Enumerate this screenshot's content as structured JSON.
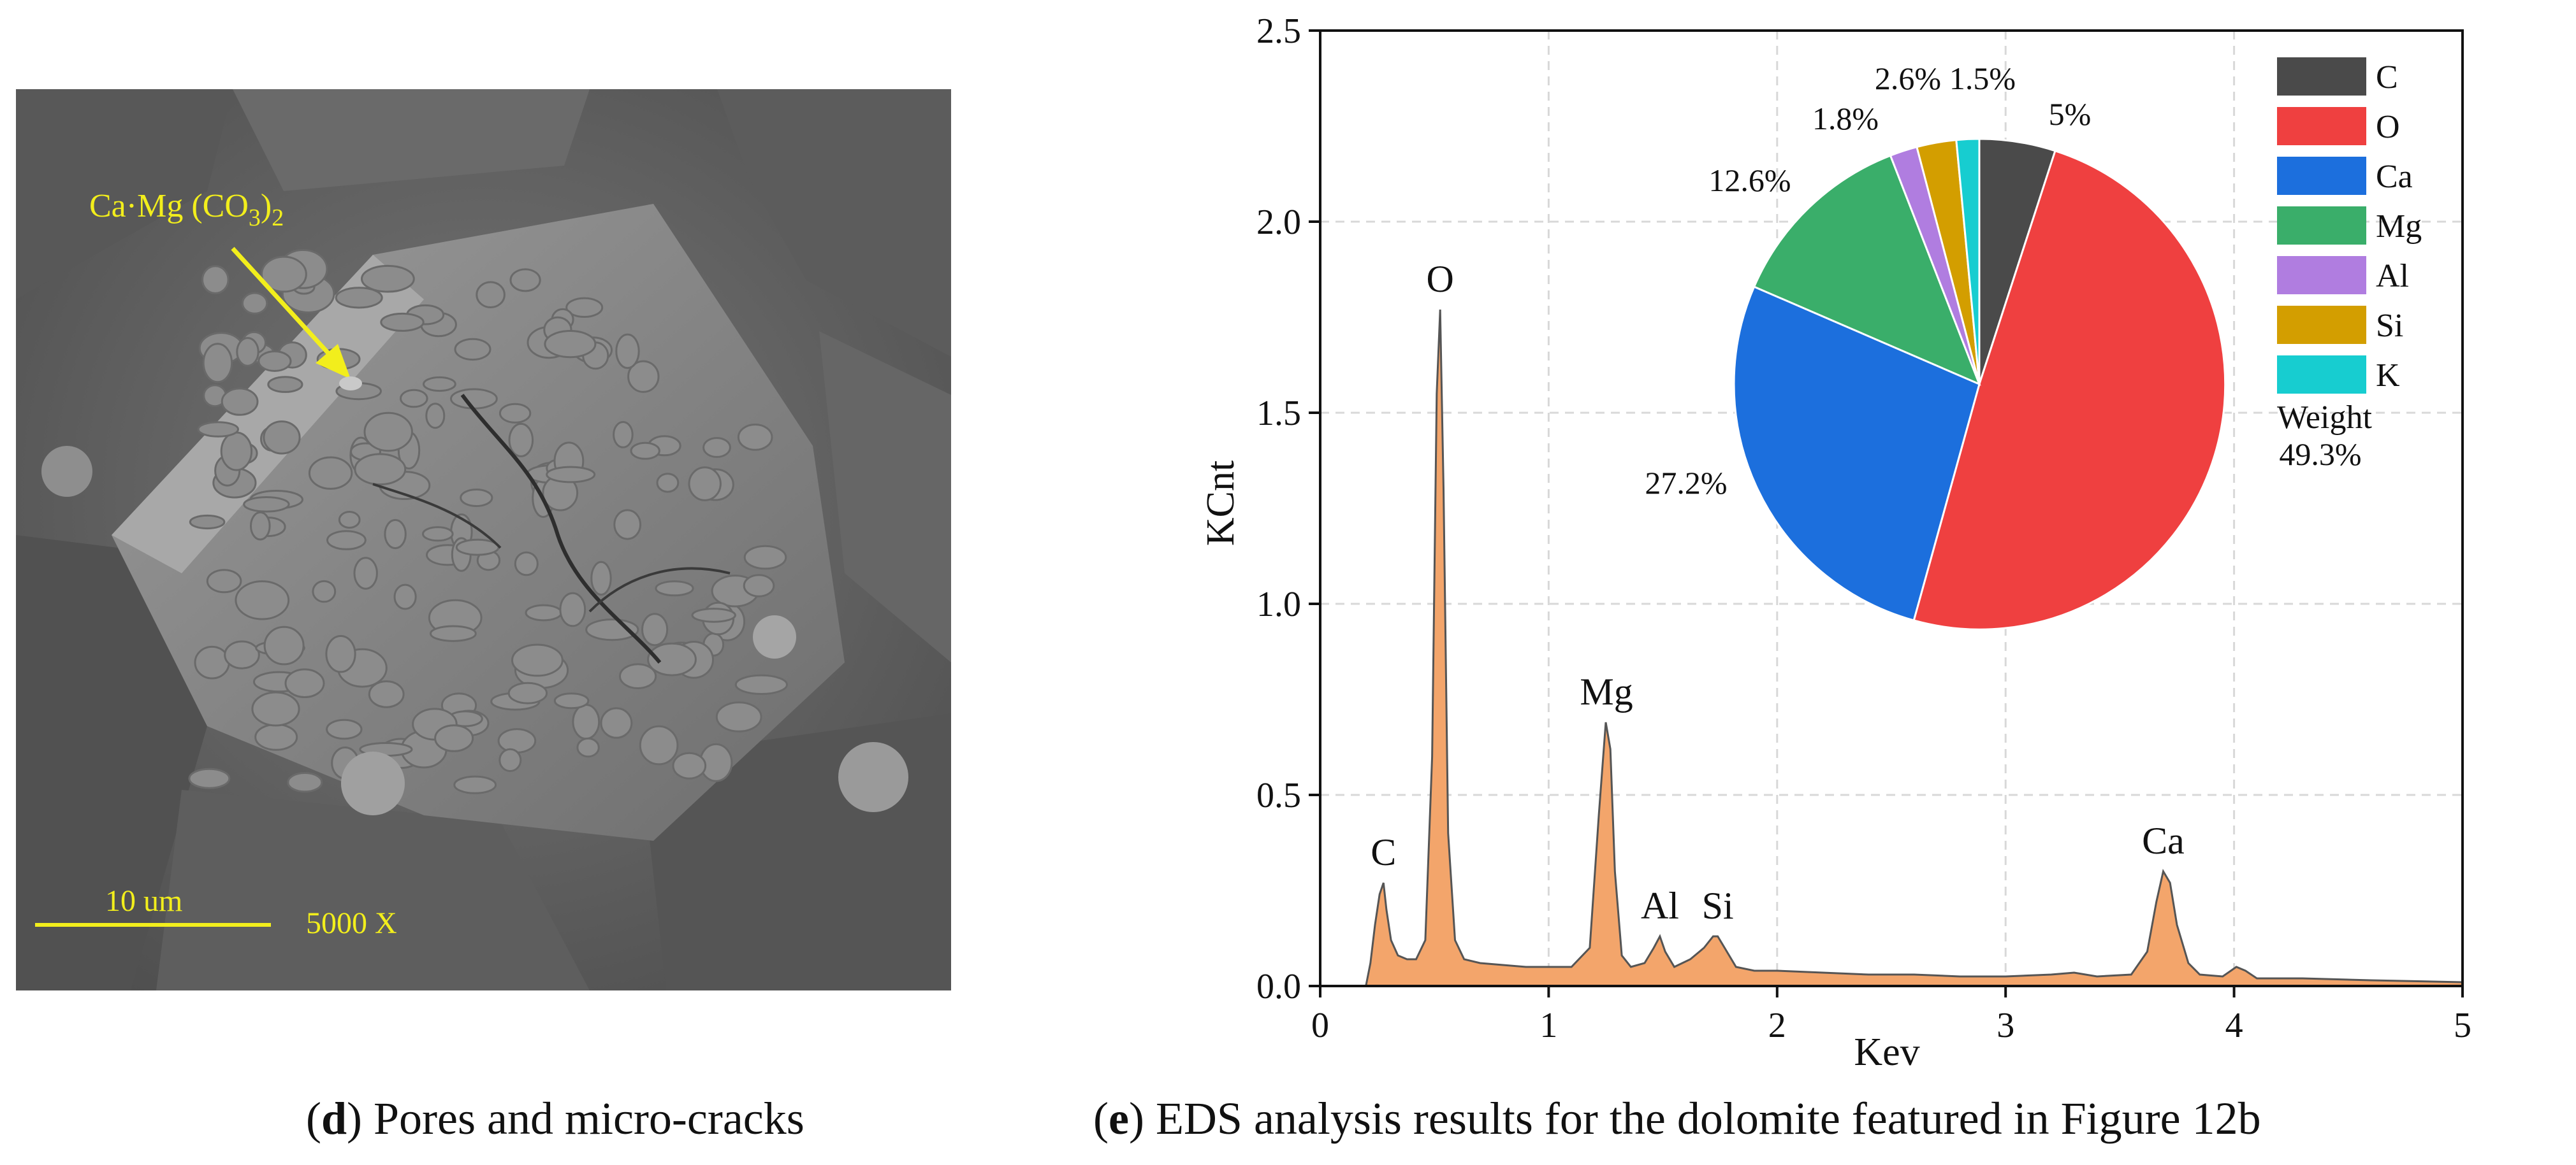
{
  "sem": {
    "annotation_prefix": "Ca·Mg (CO",
    "annotation_sub1": "3",
    "annotation_close": ")",
    "annotation_sub2": "2",
    "scale_bar": "10 um",
    "magnification": "5000 X",
    "colors": {
      "annotation": "#f2ee1c",
      "background": "#5a5a5a"
    }
  },
  "captions": {
    "d_letter": "d",
    "d_text": " Pores and micro-cracks",
    "e_letter": "e",
    "e_text": " EDS analysis results for the dolomite featured in Figure 12b"
  },
  "chart_data": [
    {
      "type": "area",
      "xlabel": "Kev",
      "ylabel": "KCnt",
      "xlim": [
        0,
        5
      ],
      "ylim": [
        0,
        2.5
      ],
      "xticks": [
        0,
        1,
        2,
        3,
        4,
        5
      ],
      "yticks": [
        0.0,
        0.5,
        1.0,
        1.5,
        2.0,
        2.5
      ],
      "ytick_labels": [
        "0.0",
        "0.5",
        "1.0",
        "1.5",
        "2.0",
        "2.5"
      ],
      "grid": true,
      "fill_color": "#f3a56b",
      "line_color": "#555555",
      "x": [
        0.2,
        0.22,
        0.24,
        0.26,
        0.277,
        0.29,
        0.31,
        0.34,
        0.38,
        0.42,
        0.46,
        0.49,
        0.51,
        0.525,
        0.54,
        0.56,
        0.59,
        0.63,
        0.7,
        0.8,
        0.9,
        1.0,
        1.1,
        1.18,
        1.22,
        1.25,
        1.27,
        1.29,
        1.32,
        1.36,
        1.42,
        1.46,
        1.487,
        1.51,
        1.55,
        1.62,
        1.68,
        1.72,
        1.74,
        1.77,
        1.82,
        1.9,
        2.0,
        2.2,
        2.4,
        2.6,
        2.8,
        3.0,
        3.2,
        3.3,
        3.4,
        3.55,
        3.62,
        3.66,
        3.69,
        3.72,
        3.75,
        3.8,
        3.85,
        3.95,
        4.01,
        4.05,
        4.1,
        4.3,
        4.6,
        5.0
      ],
      "y": [
        0.0,
        0.06,
        0.16,
        0.24,
        0.27,
        0.2,
        0.12,
        0.08,
        0.07,
        0.07,
        0.12,
        0.6,
        1.55,
        1.77,
        1.3,
        0.4,
        0.12,
        0.07,
        0.06,
        0.055,
        0.05,
        0.05,
        0.05,
        0.1,
        0.45,
        0.69,
        0.62,
        0.3,
        0.08,
        0.05,
        0.06,
        0.1,
        0.13,
        0.09,
        0.05,
        0.07,
        0.1,
        0.13,
        0.13,
        0.1,
        0.05,
        0.04,
        0.04,
        0.035,
        0.03,
        0.03,
        0.025,
        0.025,
        0.03,
        0.035,
        0.025,
        0.03,
        0.09,
        0.22,
        0.3,
        0.27,
        0.16,
        0.06,
        0.03,
        0.025,
        0.05,
        0.04,
        0.02,
        0.02,
        0.015,
        0.01
      ],
      "peaks": [
        {
          "label": "C",
          "x": 0.277,
          "y": 0.27
        },
        {
          "label": "O",
          "x": 0.525,
          "y": 1.77
        },
        {
          "label": "Mg",
          "x": 1.253,
          "y": 0.69
        },
        {
          "label": "Al",
          "x": 1.487,
          "y": 0.13
        },
        {
          "label": "Si",
          "x": 1.74,
          "y": 0.13
        },
        {
          "label": "Ca",
          "x": 3.69,
          "y": 0.3
        }
      ]
    },
    {
      "type": "pie",
      "legend_title": "Weight",
      "legend_position": "top-right",
      "labels": [
        "C",
        "O",
        "Ca",
        "Mg",
        "Al",
        "Si",
        "K"
      ],
      "values": [
        5,
        49.3,
        27.2,
        12.6,
        1.8,
        2.6,
        1.5
      ],
      "value_labels": [
        "5%",
        "49.3%",
        "27.2%",
        "12.6%",
        "1.8%",
        "2.6%",
        "1.5%"
      ],
      "colors": [
        "#4a4a4a",
        "#ef4040",
        "#1c6fdd",
        "#3aae6a",
        "#b07de0",
        "#d39e00",
        "#17cdd0"
      ]
    }
  ]
}
